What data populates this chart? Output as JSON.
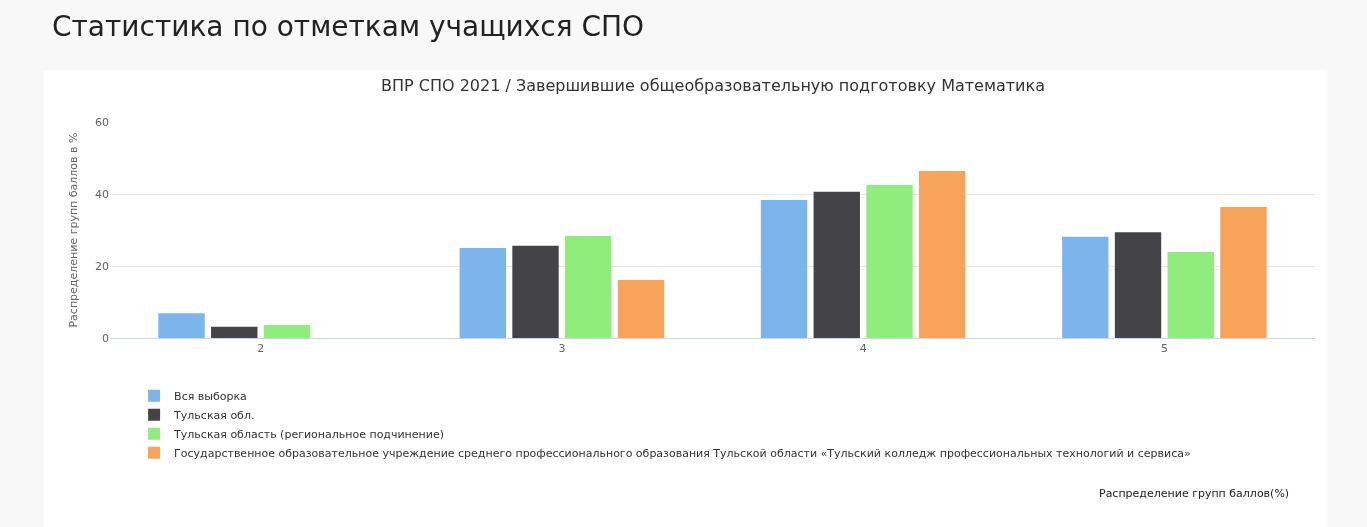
{
  "chart_data": {
    "type": "bar",
    "title": "Статистика по отметкам учащихся СПО",
    "subtitle": "ВПР СПО 2021 / Завершившие общеобразовательную подготовку Математика",
    "ylabel": "Распределение групп баллов в %",
    "annotations": [
      "Распределение групп баллов(%)"
    ],
    "categories": [
      "2",
      "3",
      "4",
      "5"
    ],
    "series": [
      {
        "name": "Вся выборка",
        "color": "#7cb5ec",
        "values": [
          6.9,
          25.0,
          38.3,
          28.1
        ]
      },
      {
        "name": "Тульская обл.",
        "color": "#434348",
        "values": [
          3.1,
          25.6,
          40.6,
          29.4
        ]
      },
      {
        "name": "Тульская область (региональное подчинение)",
        "color": "#90ed7d",
        "values": [
          3.6,
          28.3,
          42.5,
          23.9
        ]
      },
      {
        "name": "Государственное образовательное учреждение среднего профессионального образования Тульской области «Тульский колледж профессиональных технологий и сервиса»",
        "color": "#f7a35c",
        "values": [
          null,
          16.1,
          46.4,
          36.4
        ]
      }
    ],
    "ylim": [
      0,
      60
    ],
    "yticks": [
      0,
      20,
      40,
      60
    ],
    "grid": "y",
    "legend": "bottom left"
  }
}
